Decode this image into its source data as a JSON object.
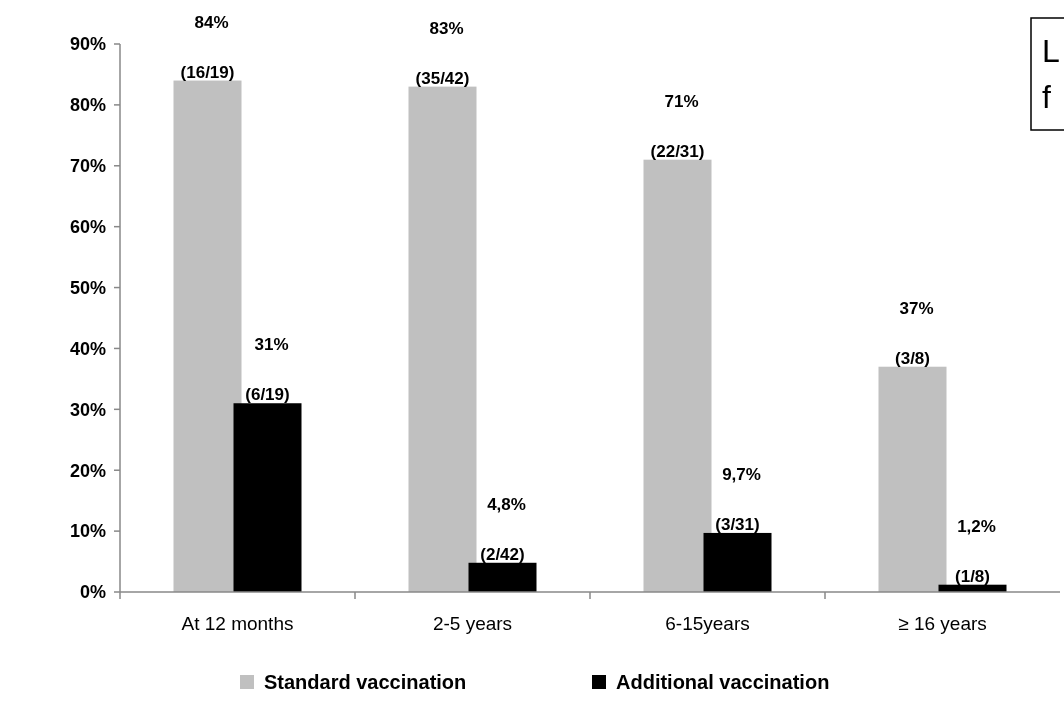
{
  "chart_data": {
    "type": "bar",
    "categories": [
      "At 12 months",
      "2-5 years",
      "6-15years",
      "≥ 16 years"
    ],
    "series": [
      {
        "name": "Standard vaccination",
        "color": "#c0c0c0",
        "values": [
          84,
          83,
          71,
          37
        ],
        "value_labels": [
          "84% (16/19)",
          "83% (35/42)",
          "71% (22/31)",
          "37% (3/8)"
        ]
      },
      {
        "name": "Additional vaccination",
        "color": "#000000",
        "values": [
          31,
          4.8,
          9.7,
          1.2
        ],
        "value_labels": [
          "31% (6/19)",
          "4,8% (2/42)",
          "9,7% (3/31)",
          "1,2% (1/8)"
        ]
      }
    ],
    "ylim": [
      0,
      90
    ],
    "yticks": [
      {
        "value": 0,
        "label": "0%"
      },
      {
        "value": 10,
        "label": "10%"
      },
      {
        "value": 20,
        "label": "20%"
      },
      {
        "value": 30,
        "label": "30%"
      },
      {
        "value": 40,
        "label": "40%"
      },
      {
        "value": 50,
        "label": "50%"
      },
      {
        "value": 60,
        "label": "60%"
      },
      {
        "value": 70,
        "label": "70%"
      },
      {
        "value": 80,
        "label": "80%"
      },
      {
        "value": 90,
        "label": "90%"
      }
    ],
    "grid": false,
    "legend": "bottom",
    "annotations": [
      "L",
      "f"
    ]
  }
}
